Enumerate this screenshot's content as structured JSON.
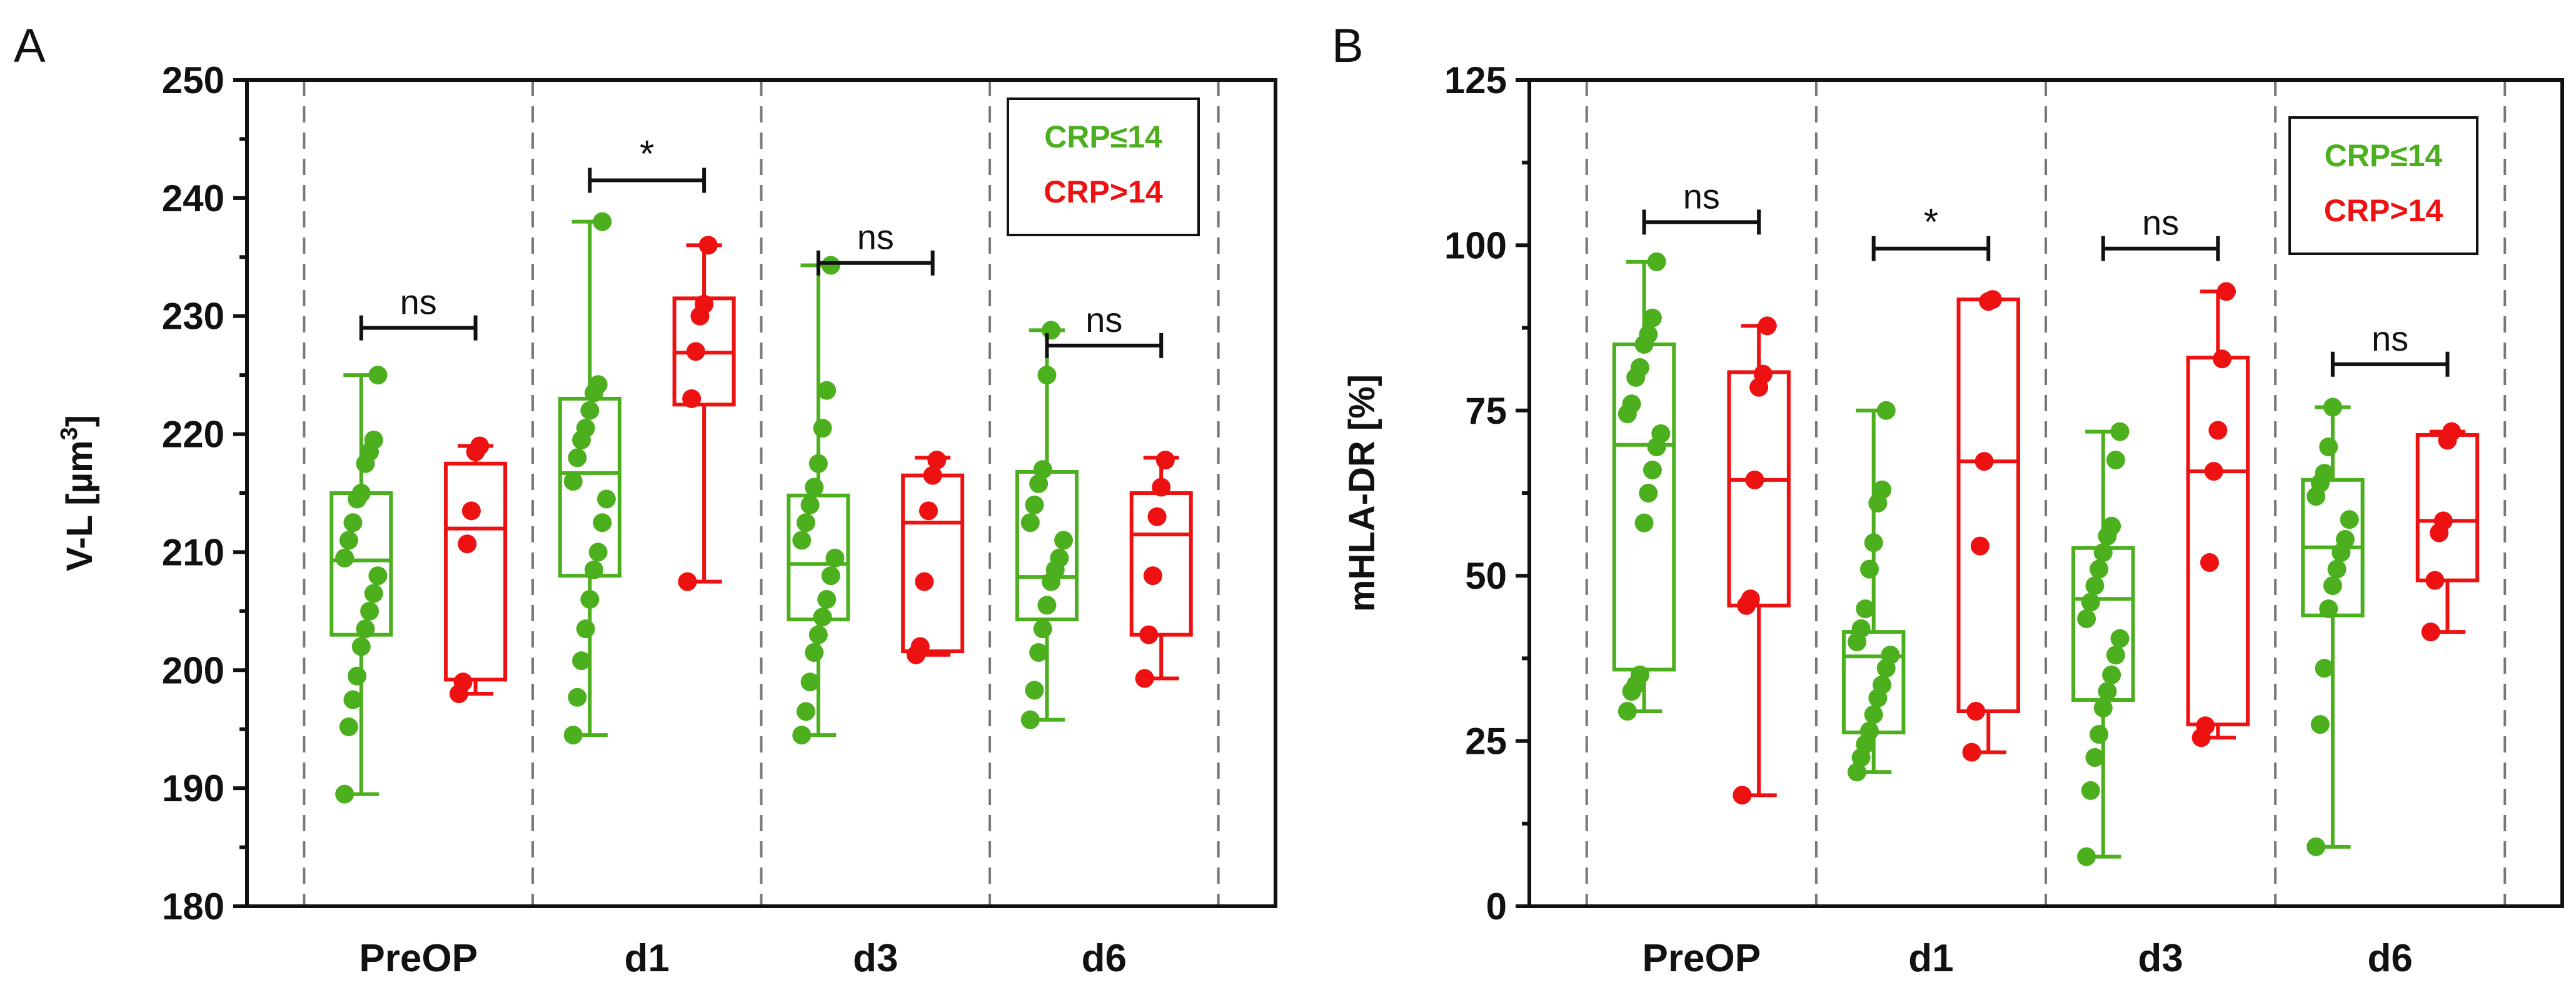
{
  "chart_data": [
    {
      "panel": "A",
      "type": "box",
      "ylabel": "V-L [µm³]",
      "ylim": [
        180,
        250
      ],
      "yticks": [
        "180",
        "190",
        "200",
        "210",
        "220",
        "230",
        "240",
        "250"
      ],
      "categories": [
        "PreOP",
        "d1",
        "d3",
        "d6"
      ],
      "legend": {
        "placement": "top-right",
        "entries": [
          "CRP≤14",
          "CRP>14"
        ]
      },
      "colors": {
        "low": "#4CAF1E",
        "high": "#EE1111"
      },
      "series": [
        {
          "name": "CRP≤14",
          "boxes": [
            {
              "min": 189.5,
              "q1": 203,
              "median": 209.3,
              "q3": 215,
              "max": 225
            },
            {
              "min": 194.5,
              "q1": 208,
              "median": 216.7,
              "q3": 223,
              "max": 238
            },
            {
              "min": 194.5,
              "q1": 204.3,
              "median": 209,
              "q3": 214.8,
              "max": 234.3
            },
            {
              "min": 195.8,
              "q1": 204.3,
              "median": 207.9,
              "q3": 216.8,
              "max": 228.8
            }
          ],
          "points": [
            [
              189.5,
              195.2,
              197.5,
              199.5,
              202,
              203.5,
              205,
              206.5,
              208,
              209.5,
              211,
              212.5,
              214.5,
              215,
              217.5,
              218.5,
              219.5,
              225
            ],
            [
              194.5,
              197.7,
              200.8,
              203.5,
              206,
              208.5,
              210,
              212.5,
              214.5,
              216,
              218,
              219.5,
              220.5,
              222,
              223.5,
              224.2,
              238
            ],
            [
              194.5,
              196.5,
              199,
              201.5,
              203,
              204.5,
              206,
              208,
              209.5,
              211,
              212.5,
              214,
              215.5,
              217.5,
              220.5,
              223.7,
              234.3
            ],
            [
              195.8,
              198.3,
              201.5,
              203.5,
              205.5,
              207.5,
              208.5,
              209.5,
              211,
              212.5,
              214,
              215.8,
              217,
              225,
              228.8
            ]
          ]
        },
        {
          "name": "CRP>14",
          "boxes": [
            {
              "min": 198,
              "q1": 199.2,
              "median": 212,
              "q3": 217.5,
              "max": 219
            },
            {
              "min": 207.5,
              "q1": 222.5,
              "median": 226.9,
              "q3": 231.5,
              "max": 236
            },
            {
              "min": 201.3,
              "q1": 201.6,
              "median": 212.5,
              "q3": 216.5,
              "max": 218
            },
            {
              "min": 199.3,
              "q1": 203,
              "median": 211.5,
              "q3": 215,
              "max": 218
            }
          ],
          "points": [
            [
              198,
              199,
              210.7,
              213.5,
              218.5,
              219
            ],
            [
              207.5,
              223,
              227,
              230,
              231,
              236
            ],
            [
              201.3,
              202,
              207.5,
              213.5,
              216.5,
              217.8
            ],
            [
              199.3,
              203,
              208,
              213,
              215.5,
              217.8
            ]
          ]
        }
      ],
      "annotations": [
        {
          "category": "PreOP",
          "text": "ns",
          "y": 229
        },
        {
          "category": "d1",
          "text": "*",
          "y": 241.5
        },
        {
          "category": "d3",
          "text": "ns",
          "y": 234.5
        },
        {
          "category": "d6",
          "text": "ns",
          "y": 227.5
        }
      ]
    },
    {
      "panel": "B",
      "type": "box",
      "ylabel": "mHLA-DR [%]",
      "ylim": [
        0,
        125
      ],
      "yticks": [
        "0",
        "25",
        "50",
        "75",
        "100",
        "125"
      ],
      "categories": [
        "PreOP",
        "d1",
        "d3",
        "d6"
      ],
      "legend": {
        "placement": "top-right",
        "entries": [
          "CRP≤14",
          "CRP>14"
        ]
      },
      "colors": {
        "low": "#4CAF1E",
        "high": "#EE1111"
      },
      "series": [
        {
          "name": "CRP≤14",
          "boxes": [
            {
              "min": 29.5,
              "q1": 35.8,
              "median": 69.8,
              "q3": 85,
              "max": 97.5
            },
            {
              "min": 20.3,
              "q1": 26.3,
              "median": 37.8,
              "q3": 41.5,
              "max": 75
            },
            {
              "min": 7.5,
              "q1": 31.2,
              "median": 46.5,
              "q3": 54.2,
              "max": 71.8
            },
            {
              "min": 9,
              "q1": 44,
              "median": 54.3,
              "q3": 64.5,
              "max": 75.5
            }
          ],
          "points": [
            [
              29.5,
              32.5,
              33.5,
              35,
              58,
              62.5,
              66,
              69.5,
              71.5,
              74.5,
              76,
              80,
              81.5,
              85,
              86.5,
              89,
              97.5
            ],
            [
              20.3,
              22.5,
              24.5,
              26.5,
              29,
              31.5,
              33.5,
              36,
              38,
              40,
              42,
              45,
              51,
              55,
              61,
              63,
              75
            ],
            [
              7.5,
              17.5,
              22.5,
              26,
              30,
              32.5,
              35,
              38,
              40.5,
              43.5,
              46,
              48.5,
              51,
              53.5,
              56,
              57.5,
              67.5,
              71.8
            ],
            [
              9,
              27.5,
              36,
              45,
              48.5,
              51,
              53.5,
              55.5,
              58.5,
              62,
              64,
              65.5,
              69.5,
              75.5
            ]
          ]
        },
        {
          "name": "CRP>14",
          "boxes": [
            {
              "min": 16.8,
              "q1": 45.5,
              "median": 64.5,
              "q3": 80.8,
              "max": 87.8
            },
            {
              "min": 23.3,
              "q1": 29.5,
              "median": 67.3,
              "q3": 91.8,
              "max": 91.8
            },
            {
              "min": 25.5,
              "q1": 27.5,
              "median": 65.8,
              "q3": 83,
              "max": 93
            },
            {
              "min": 41.5,
              "q1": 49.3,
              "median": 58.3,
              "q3": 71.3,
              "max": 71.8
            }
          ],
          "points": [
            [
              16.8,
              45.5,
              46.5,
              64.5,
              78.5,
              80.5,
              87.8
            ],
            [
              23.3,
              29.5,
              54.5,
              67.3,
              91.5,
              91.8
            ],
            [
              25.5,
              27.3,
              52,
              65.8,
              72,
              82.8,
              93
            ],
            [
              41.5,
              49.3,
              56.5,
              58.3,
              70.5,
              71.8
            ]
          ]
        }
      ],
      "annotations": [
        {
          "category": "PreOP",
          "text": "ns",
          "y": 103.5
        },
        {
          "category": "d1",
          "text": "*",
          "y": 99.5
        },
        {
          "category": "d3",
          "text": "ns",
          "y": 99.5
        },
        {
          "category": "d6",
          "text": "ns",
          "y": 82
        }
      ]
    }
  ]
}
